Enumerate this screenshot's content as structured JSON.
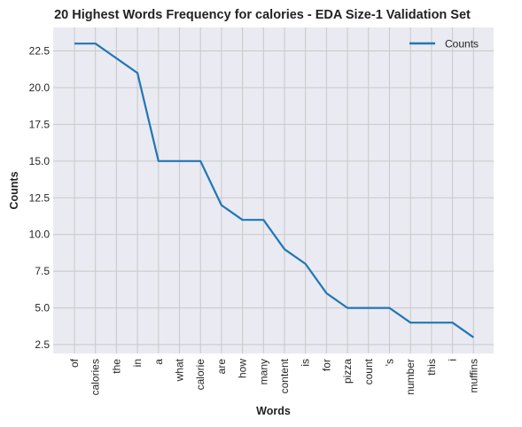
{
  "chart_data": {
    "type": "line",
    "title": "20 Highest Words Frequency for calories - EDA Size-1 Validation Set",
    "xlabel": "Words",
    "ylabel": "Counts",
    "categories": [
      "of",
      "calories",
      "the",
      "in",
      "a",
      "what",
      "calorie",
      "are",
      "how",
      "many",
      "content",
      "is",
      "for",
      "pizza",
      "count",
      "'s",
      "number",
      "this",
      "i",
      "muffins"
    ],
    "series": [
      {
        "name": "Counts",
        "values": [
          23,
          23,
          22,
          21,
          15,
          15,
          15,
          12,
          11,
          11,
          9,
          8,
          6,
          5,
          5,
          5,
          4,
          4,
          4,
          3
        ]
      }
    ],
    "ylim": [
      1.9,
      24.1
    ],
    "yticks": [
      2.5,
      5.0,
      7.5,
      10.0,
      12.5,
      15.0,
      17.5,
      20.0,
      22.5
    ],
    "ytick_labels": [
      "2.5",
      "5.0",
      "7.5",
      "10.0",
      "12.5",
      "15.0",
      "17.5",
      "20.0",
      "22.5"
    ],
    "grid": true,
    "legend_position": "top-right",
    "colors": {
      "line": "#1f77b4",
      "background": "#eaeaf2",
      "grid": "#c8c8c8"
    }
  }
}
